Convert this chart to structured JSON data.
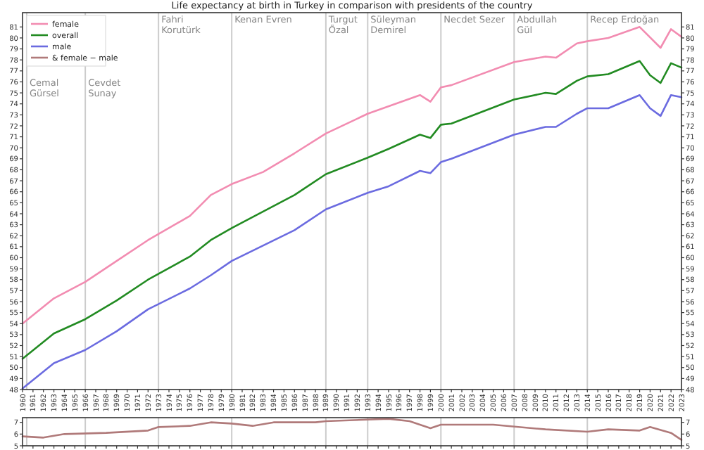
{
  "chart_data": [
    {
      "type": "line",
      "title": "Life expectancy at birth in Turkey in comparison with presidents of the country",
      "xlim": [
        1960,
        2023
      ],
      "xticks": [
        1960,
        1961,
        1962,
        1963,
        1964,
        1965,
        1966,
        1967,
        1968,
        1969,
        1970,
        1971,
        1972,
        1973,
        1974,
        1975,
        1976,
        1977,
        1978,
        1979,
        1980,
        1981,
        1982,
        1983,
        1984,
        1985,
        1986,
        1987,
        1988,
        1989,
        1990,
        1991,
        1992,
        1993,
        1994,
        1995,
        1996,
        1997,
        1998,
        1999,
        2000,
        2001,
        2002,
        2003,
        2004,
        2005,
        2006,
        2007,
        2008,
        2009,
        2010,
        2011,
        2012,
        2013,
        2014,
        2015,
        2016,
        2017,
        2018,
        2019,
        2020,
        2021,
        2022,
        2023
      ],
      "ylim": [
        48,
        82.3
      ],
      "yticks": [
        48,
        49,
        50,
        51,
        52,
        53,
        54,
        55,
        56,
        57,
        58,
        59,
        60,
        61,
        62,
        63,
        64,
        65,
        66,
        67,
        68,
        69,
        70,
        71,
        72,
        73,
        74,
        75,
        76,
        77,
        78,
        79,
        80,
        81
      ],
      "y2lim": [
        48,
        82.3
      ],
      "y2ticks": [
        48,
        49,
        50,
        51,
        52,
        53,
        54,
        55,
        56,
        57,
        58,
        59,
        60,
        61,
        62,
        63,
        64,
        65,
        66,
        67,
        68,
        69,
        70,
        71,
        72,
        73,
        74,
        75,
        76,
        77,
        78,
        79,
        80,
        81
      ],
      "legend": "top left",
      "grid": false,
      "line_style": "solid",
      "marker": "none",
      "series": [
        {
          "name": "female",
          "color": "#f28cb1",
          "x": [
            1960,
            1963,
            1966,
            1969,
            1972,
            1976,
            1978,
            1980,
            1983,
            1986,
            1989,
            1993,
            1998,
            1999,
            2000,
            2001,
            2007,
            2010,
            2011,
            2013,
            2014,
            2016,
            2019,
            2021,
            2022,
            2023
          ],
          "values": [
            54.0,
            56.3,
            57.8,
            59.7,
            61.6,
            63.8,
            65.7,
            66.7,
            67.8,
            69.5,
            71.3,
            73.1,
            74.8,
            74.2,
            75.5,
            75.7,
            77.8,
            78.3,
            78.2,
            79.5,
            79.7,
            80.0,
            81.0,
            79.1,
            80.8,
            80.1
          ]
        },
        {
          "name": "overall",
          "color": "#228b22",
          "x": [
            1960,
            1963,
            1966,
            1969,
            1972,
            1976,
            1978,
            1980,
            1986,
            1989,
            1993,
            1995,
            1998,
            1999,
            2000,
            2001,
            2007,
            2010,
            2011,
            2013,
            2014,
            2016,
            2019,
            2020,
            2021,
            2022,
            2023
          ],
          "values": [
            50.8,
            53.1,
            54.4,
            56.1,
            58.0,
            60.1,
            61.6,
            62.7,
            65.7,
            67.6,
            69.1,
            69.9,
            71.2,
            70.9,
            72.1,
            72.2,
            74.4,
            75.0,
            74.9,
            76.1,
            76.5,
            76.7,
            77.9,
            76.6,
            75.9,
            77.7,
            77.3
          ]
        },
        {
          "name": "male",
          "color": "#6b6be0",
          "x": [
            1960,
            1963,
            1966,
            1969,
            1972,
            1976,
            1978,
            1980,
            1986,
            1989,
            1993,
            1995,
            1998,
            1999,
            2000,
            2001,
            2007,
            2010,
            2011,
            2013,
            2014,
            2016,
            2019,
            2020,
            2021,
            2022,
            2023
          ],
          "values": [
            48.1,
            50.4,
            51.6,
            53.3,
            55.3,
            57.2,
            58.4,
            59.7,
            62.5,
            64.4,
            65.9,
            66.5,
            67.9,
            67.7,
            68.7,
            69.0,
            71.2,
            71.9,
            71.9,
            73.1,
            73.6,
            73.6,
            74.8,
            73.6,
            72.9,
            74.8,
            74.6
          ]
        }
      ],
      "ref_lines": [
        {
          "axis": "x",
          "value": 1960.4,
          "label": "Cemal\nGürsel",
          "color": "#cccccc"
        },
        {
          "axis": "x",
          "value": 1966,
          "label": "Cevdet\nSunay",
          "color": "#cccccc"
        },
        {
          "axis": "x",
          "value": 1973,
          "label": "Fahri\nKorutürk",
          "color": "#cccccc"
        },
        {
          "axis": "x",
          "value": 1980,
          "label": "Kenan Evren",
          "color": "#cccccc"
        },
        {
          "axis": "x",
          "value": 1989,
          "label": "Turgut\nÖzal",
          "color": "#cccccc"
        },
        {
          "axis": "x",
          "value": 1993,
          "label": "Süleyman\nDemirel",
          "color": "#cccccc"
        },
        {
          "axis": "x",
          "value": 2000,
          "label": "Necdet Sezer",
          "color": "#cccccc"
        },
        {
          "axis": "x",
          "value": 2007,
          "label": "Abdullah\nGül",
          "color": "#cccccc"
        },
        {
          "axis": "x",
          "value": 2014,
          "label": "Recep Erdoğan",
          "color": "#cccccc"
        }
      ]
    },
    {
      "type": "line",
      "xlim": [
        1960,
        2023
      ],
      "xticks": [
        1960,
        1961,
        1962,
        1963,
        1964,
        1965,
        1966,
        1967,
        1968,
        1969,
        1970,
        1971,
        1972,
        1973,
        1974,
        1975,
        1976,
        1977,
        1978,
        1979,
        1980,
        1981,
        1982,
        1983,
        1984,
        1985,
        1986,
        1987,
        1988,
        1989,
        1990,
        1991,
        1992,
        1993,
        1994,
        1995,
        1996,
        1997,
        1998,
        1999,
        2000,
        2001,
        2002,
        2003,
        2004,
        2005,
        2006,
        2007,
        2008,
        2009,
        2010,
        2011,
        2012,
        2013,
        2014,
        2015,
        2016,
        2017,
        2018,
        2019,
        2020,
        2021,
        2022,
        2023
      ],
      "ylim": [
        5,
        7.4
      ],
      "yticks": [
        5,
        6,
        7
      ],
      "y2lim": [
        5,
        7.4
      ],
      "y2ticks": [
        5,
        6,
        7
      ],
      "tick_labels": "y",
      "grid": false,
      "line_style": "solid",
      "marker": "none",
      "series": [
        {
          "name": "& female − male",
          "color": "#b07a7a",
          "x": [
            1960,
            1962,
            1964,
            1968,
            1972,
            1973,
            1976,
            1978,
            1980,
            1982,
            1984,
            1988,
            1989,
            1995,
            1997,
            1999,
            2000,
            2005,
            2010,
            2014,
            2016,
            2019,
            2020,
            2022,
            2023
          ],
          "values": [
            5.8,
            5.7,
            6.0,
            6.1,
            6.3,
            6.6,
            6.7,
            7.0,
            6.9,
            6.7,
            7.0,
            7.0,
            7.1,
            7.3,
            7.1,
            6.5,
            6.8,
            6.8,
            6.4,
            6.2,
            6.4,
            6.3,
            6.6,
            6.1,
            5.5
          ]
        }
      ],
      "ref_lines": [
        {
          "axis": "x",
          "value": 1960.4,
          "color": "#cccccc"
        },
        {
          "axis": "x",
          "value": 1966,
          "color": "#cccccc"
        },
        {
          "axis": "x",
          "value": 1973,
          "color": "#cccccc"
        },
        {
          "axis": "x",
          "value": 1980,
          "color": "#cccccc"
        },
        {
          "axis": "x",
          "value": 1989,
          "color": "#cccccc"
        },
        {
          "axis": "x",
          "value": 1993,
          "color": "#cccccc"
        },
        {
          "axis": "x",
          "value": 2000,
          "color": "#cccccc"
        },
        {
          "axis": "x",
          "value": 2007,
          "color": "#cccccc"
        },
        {
          "axis": "x",
          "value": 2014,
          "color": "#cccccc"
        }
      ]
    }
  ]
}
